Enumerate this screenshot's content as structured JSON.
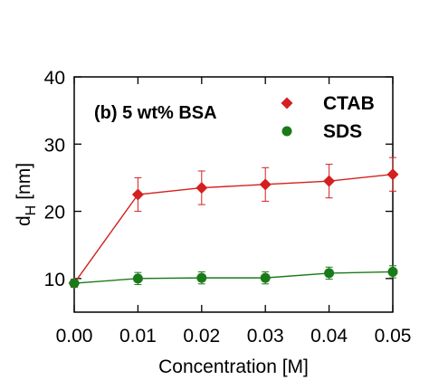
{
  "chart_data": {
    "type": "line",
    "panel_label": "(b) 5 wt% BSA",
    "xlabel": "Concentration [M]",
    "ylabel_main": "d",
    "ylabel_sub": "H",
    "ylabel_unit": "[nm]",
    "xlim": [
      0.0,
      0.05
    ],
    "ylim": [
      5,
      40
    ],
    "x_ticks": [
      0.0,
      0.01,
      0.02,
      0.03,
      0.04,
      0.05
    ],
    "x_tick_labels": [
      "0.00",
      "0.01",
      "0.02",
      "0.03",
      "0.04",
      "0.05"
    ],
    "y_ticks": [
      10,
      20,
      30,
      40
    ],
    "y_tick_labels": [
      "10",
      "20",
      "30",
      "40"
    ],
    "legend_position": "top-right",
    "series": [
      {
        "name": "CTAB",
        "marker": "diamond",
        "color": "#d42020",
        "x": [
          0.0,
          0.01,
          0.02,
          0.03,
          0.04,
          0.05
        ],
        "y": [
          9.3,
          22.5,
          23.5,
          24.0,
          24.5,
          25.5
        ],
        "err": [
          0.6,
          2.5,
          2.5,
          2.5,
          2.5,
          2.5
        ]
      },
      {
        "name": "SDS",
        "marker": "circle",
        "color": "#1a7a1a",
        "x": [
          0.0,
          0.01,
          0.02,
          0.03,
          0.04,
          0.05
        ],
        "y": [
          9.3,
          10.0,
          10.1,
          10.1,
          10.8,
          11.0
        ],
        "err": [
          0.3,
          0.9,
          0.9,
          0.9,
          0.9,
          0.9
        ]
      }
    ]
  }
}
